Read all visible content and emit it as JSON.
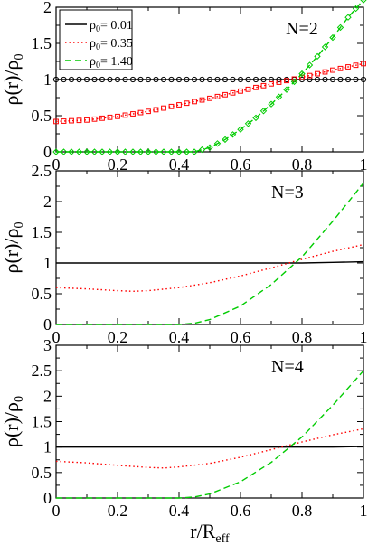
{
  "chart_data": [
    {
      "type": "line",
      "panel_label": "N=2",
      "xlim": [
        0,
        1
      ],
      "ylim": [
        0,
        2
      ],
      "x_ticks": [
        "0",
        "0.2",
        "0.4",
        "0.6",
        "0.8",
        "1"
      ],
      "y_ticks": [
        "0",
        "0.5",
        "1",
        "1.5",
        "2"
      ],
      "ylabel": {
        "main": "ρ(r)/ρ",
        "sub": "0"
      },
      "legend": {
        "placement": "top-left",
        "entries": [
          {
            "prefix": "ρ",
            "sub": "0",
            "suffix": "= 0.01"
          },
          {
            "prefix": "ρ",
            "sub": "0",
            "suffix": "= 0.35"
          },
          {
            "prefix": "ρ",
            "sub": "0",
            "suffix": "= 1.40"
          }
        ]
      },
      "series": [
        {
          "color": "#000000",
          "dash": "solid",
          "marker": "circle",
          "x": [
            0,
            0.1,
            0.2,
            0.3,
            0.4,
            0.5,
            0.6,
            0.7,
            0.8,
            0.9,
            1.0
          ],
          "y": [
            1.0,
            1.0,
            1.0,
            1.0,
            1.0,
            1.0,
            1.0,
            1.0,
            1.0,
            1.0,
            1.0
          ]
        },
        {
          "color": "#ff0000",
          "dash": "dotted",
          "marker": "square",
          "x": [
            0,
            0.1,
            0.2,
            0.3,
            0.4,
            0.5,
            0.6,
            0.7,
            0.8,
            0.9,
            1.0
          ],
          "y": [
            0.42,
            0.44,
            0.49,
            0.56,
            0.65,
            0.74,
            0.84,
            0.94,
            1.03,
            1.13,
            1.22
          ]
        },
        {
          "color": "#00cc00",
          "dash": "dashed",
          "marker": "diamond",
          "x": [
            0,
            0.1,
            0.2,
            0.3,
            0.4,
            0.45,
            0.5,
            0.55,
            0.6,
            0.65,
            0.7,
            0.75,
            0.8,
            0.85,
            0.9,
            0.95,
            1.0
          ],
          "y": [
            0,
            0,
            0,
            0,
            0,
            0,
            0.06,
            0.17,
            0.31,
            0.47,
            0.66,
            0.86,
            1.08,
            1.32,
            1.58,
            1.86,
            2.1
          ]
        }
      ]
    },
    {
      "type": "line",
      "panel_label": "N=3",
      "xlim": [
        0,
        1
      ],
      "ylim": [
        0,
        2.5
      ],
      "x_ticks": [
        "0",
        "0.2",
        "0.4",
        "0.6",
        "0.8",
        "1"
      ],
      "y_ticks": [
        "0",
        "0.5",
        "1",
        "1.5",
        "2",
        "2.5"
      ],
      "ylabel": {
        "main": "ρ(r)/ρ",
        "sub": "0"
      },
      "series": [
        {
          "color": "#000000",
          "dash": "solid",
          "x": [
            0,
            0.1,
            0.2,
            0.3,
            0.4,
            0.5,
            0.6,
            0.7,
            0.8,
            0.9,
            1.0
          ],
          "y": [
            1.0,
            1.0,
            1.0,
            1.0,
            1.0,
            1.0,
            1.0,
            1.0,
            1.0,
            1.01,
            1.02
          ]
        },
        {
          "color": "#ff0000",
          "dash": "dotted",
          "x": [
            0,
            0.1,
            0.2,
            0.25,
            0.3,
            0.4,
            0.5,
            0.6,
            0.7,
            0.8,
            0.9,
            1.0
          ],
          "y": [
            0.6,
            0.58,
            0.55,
            0.54,
            0.55,
            0.6,
            0.68,
            0.79,
            0.92,
            1.06,
            1.19,
            1.3
          ]
        },
        {
          "color": "#00cc00",
          "dash": "dashed",
          "x": [
            0,
            0.1,
            0.2,
            0.3,
            0.4,
            0.45,
            0.5,
            0.6,
            0.7,
            0.8,
            0.9,
            1.0
          ],
          "y": [
            0,
            0,
            0,
            0,
            0,
            0.02,
            0.08,
            0.3,
            0.65,
            1.1,
            1.68,
            2.3
          ]
        }
      ]
    },
    {
      "type": "line",
      "panel_label": "N=4",
      "xlim": [
        0,
        1
      ],
      "ylim": [
        0,
        3
      ],
      "x_ticks": [
        "0",
        "0.2",
        "0.4",
        "0.6",
        "0.8",
        "1"
      ],
      "y_ticks": [
        "0",
        "0.5",
        "1",
        "1.5",
        "2",
        "2.5",
        "3"
      ],
      "ylabel": {
        "main": "ρ(r)/ρ",
        "sub": "0"
      },
      "xlabel": {
        "main": "r/R",
        "sub": "eff"
      },
      "series": [
        {
          "color": "#000000",
          "dash": "solid",
          "x": [
            0,
            0.1,
            0.2,
            0.3,
            0.4,
            0.5,
            0.6,
            0.7,
            0.8,
            0.9,
            1.0
          ],
          "y": [
            1.0,
            1.0,
            1.0,
            1.0,
            1.0,
            1.0,
            1.0,
            1.0,
            1.0,
            1.0,
            1.01
          ]
        },
        {
          "color": "#ff0000",
          "dash": "dotted",
          "x": [
            0,
            0.1,
            0.2,
            0.3,
            0.35,
            0.4,
            0.5,
            0.6,
            0.7,
            0.8,
            0.9,
            1.0
          ],
          "y": [
            0.72,
            0.69,
            0.64,
            0.6,
            0.59,
            0.61,
            0.68,
            0.8,
            0.95,
            1.1,
            1.24,
            1.36
          ]
        },
        {
          "color": "#00cc00",
          "dash": "dashed",
          "x": [
            0,
            0.1,
            0.2,
            0.3,
            0.4,
            0.45,
            0.5,
            0.6,
            0.7,
            0.8,
            0.9,
            1.0
          ],
          "y": [
            0,
            0,
            0,
            0,
            0,
            0.02,
            0.08,
            0.32,
            0.7,
            1.2,
            1.82,
            2.5
          ]
        }
      ]
    }
  ]
}
